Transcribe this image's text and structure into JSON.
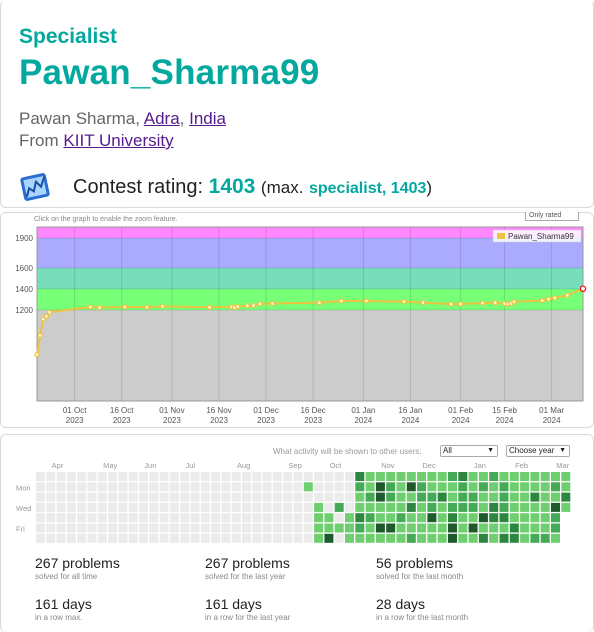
{
  "profile": {
    "rank": "Specialist",
    "handle": "Pawan_Sharma99",
    "name": "Pawan Sharma",
    "city": "Adra",
    "country": "India",
    "from_label": "From",
    "organization": "KIIT University",
    "rating_label": "Contest rating:",
    "rating": "1403",
    "max_prefix": "(max.",
    "max_rank": "specialist, 1403",
    "max_suffix": ")",
    "icon": "rating-chart-icon",
    "rank_color": "#03a89e"
  },
  "rating_graph": {
    "hint": "Click on the graph to enable the zoom feature.",
    "range_selector": "Only rated"
  },
  "chart_data": {
    "type": "line",
    "title": "",
    "series": [
      {
        "name": "Pawan_Sharma99",
        "color": "#edc240",
        "x": [
          "2023-09-19",
          "2023-09-20",
          "2023-09-21",
          "2023-09-22",
          "2023-09-23",
          "2023-10-06",
          "2023-10-09",
          "2023-10-17",
          "2023-10-24",
          "2023-10-29",
          "2023-11-13",
          "2023-11-20",
          "2023-11-21",
          "2023-11-22",
          "2023-11-25",
          "2023-11-27",
          "2023-11-29",
          "2023-12-03",
          "2023-12-18",
          "2023-12-25",
          "2024-01-02",
          "2024-01-14",
          "2024-01-20",
          "2024-01-29",
          "2024-02-01",
          "2024-02-08",
          "2024-02-12",
          "2024-02-15",
          "2024-02-16",
          "2024-02-17",
          "2024-02-18",
          "2024-02-27",
          "2024-02-29",
          "2024-03-02",
          "2024-03-06",
          "2024-03-11"
        ],
        "values": [
          1102,
          1144,
          1180,
          1186,
          1195,
          1228,
          1223,
          1230,
          1226,
          1235,
          1226,
          1230,
          1224,
          1232,
          1240,
          1242,
          1258,
          1262,
          1270,
          1286,
          1286,
          1280,
          1270,
          1256,
          1258,
          1266,
          1270,
          1260,
          1256,
          1262,
          1278,
          1290,
          1304,
          1316,
          1340,
          1403
        ]
      }
    ],
    "x_ticks": [
      [
        "01 Oct",
        "2023"
      ],
      [
        "16 Oct",
        "2023"
      ],
      [
        "01 Nov",
        "2023"
      ],
      [
        "16 Nov",
        "2023"
      ],
      [
        "01 Dec",
        "2023"
      ],
      [
        "16 Dec",
        "2023"
      ],
      [
        "01 Jan",
        "2024"
      ],
      [
        "16 Jan",
        "2024"
      ],
      [
        "01 Feb",
        "2024"
      ],
      [
        "15 Feb",
        "2024"
      ],
      [
        "01 Mar",
        "2024"
      ]
    ],
    "y_ticks": [
      "1200",
      "1400",
      "1600",
      "1900"
    ],
    "rank_bands": [
      {
        "color": "#cccccc"
      },
      {
        "color": "#77ff77"
      },
      {
        "color": "#77ddbb"
      },
      {
        "color": "#aaaaff"
      },
      {
        "color": "#ff88ff"
      }
    ],
    "legend_position": "top-right",
    "last_point_color": "#ff0000"
  },
  "activity": {
    "visibility_label": "What activity will be shown to other users:",
    "visibility_value": "All",
    "year_value": "Choose year",
    "months": [
      "Apr",
      "May",
      "Jun",
      "Jul",
      "Aug",
      "Sep",
      "Oct",
      "Nov",
      "Dec",
      "Jan",
      "Feb",
      "Mar"
    ],
    "weekdays": [
      "Mon",
      "Wed",
      "Fri"
    ],
    "colors": {
      "empty": "#ebebeb",
      "l1": "#6fce6f",
      "l2": "#44aa55",
      "l3": "#2e8540",
      "l4": "#1e5a2c"
    },
    "stats": [
      {
        "value": "267 problems",
        "caption": "solved for all time"
      },
      {
        "value": "267 problems",
        "caption": "solved for the last year"
      },
      {
        "value": "56 problems",
        "caption": "solved for the last month"
      },
      {
        "value": "161 days",
        "caption": "in a row max."
      },
      {
        "value": "161 days",
        "caption": "in a row for the last year"
      },
      {
        "value": "28 days",
        "caption": "in a row for the last month"
      }
    ]
  }
}
